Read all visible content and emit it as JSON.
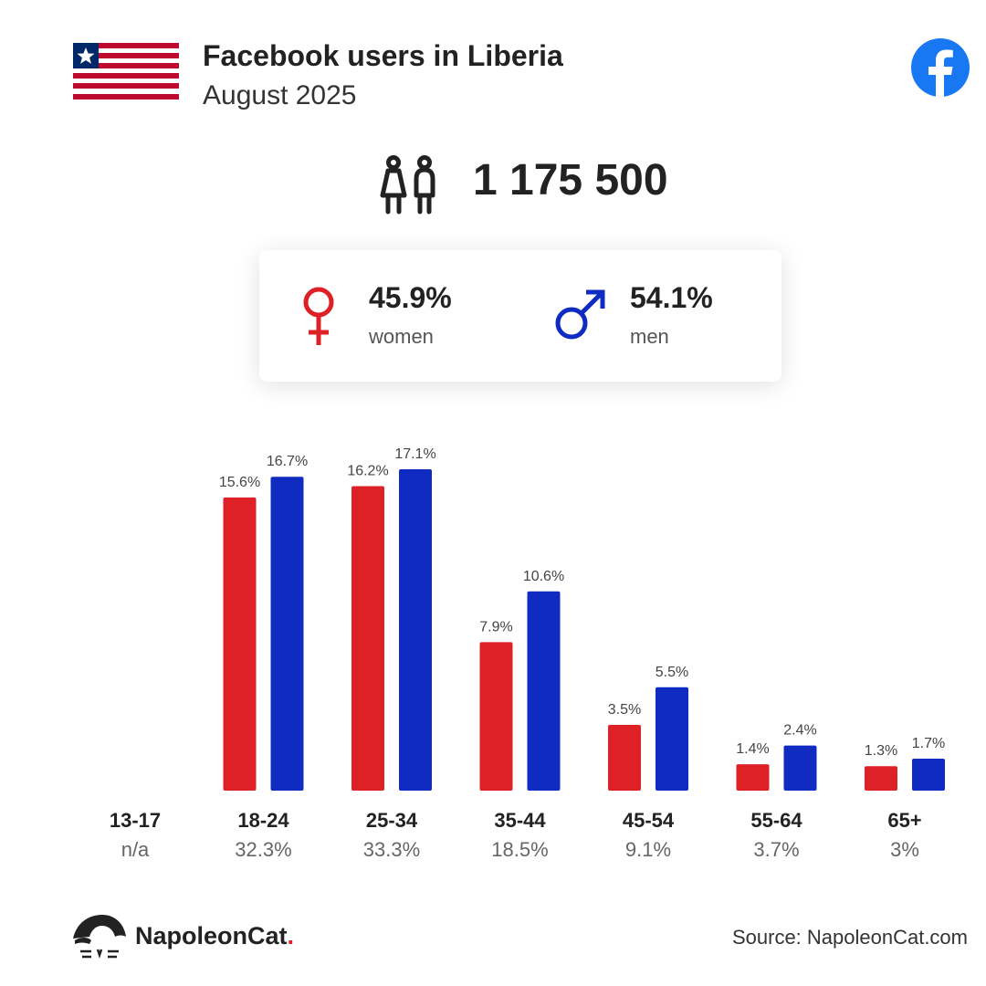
{
  "header": {
    "title": "Facebook users in Liberia",
    "subtitle": "August 2025"
  },
  "total_users": "1 175 500",
  "gender": {
    "women_pct": "45.9%",
    "women_label": "women",
    "men_pct": "54.1%",
    "men_label": "men"
  },
  "colors": {
    "women": "#de2027",
    "men": "#0f2bc2",
    "facebook": "#1877f2"
  },
  "icons": [
    "liberia-flag-icon",
    "facebook-icon",
    "people-icon",
    "female-symbol-icon",
    "male-symbol-icon",
    "napoleoncat-logo-icon"
  ],
  "chart_data": {
    "type": "bar",
    "categories": [
      "13-17",
      "18-24",
      "25-34",
      "35-44",
      "45-54",
      "55-64",
      "65+"
    ],
    "category_totals": [
      "n/a",
      "32.3%",
      "33.3%",
      "18.5%",
      "9.1%",
      "3.7%",
      "3%"
    ],
    "series": [
      {
        "name": "women",
        "values": [
          null,
          15.6,
          16.2,
          7.9,
          3.5,
          1.4,
          1.3
        ],
        "labels": [
          "",
          "15.6%",
          "16.2%",
          "7.9%",
          "3.5%",
          "1.4%",
          "1.3%"
        ]
      },
      {
        "name": "men",
        "values": [
          null,
          16.7,
          17.1,
          10.6,
          5.5,
          2.4,
          1.7
        ],
        "labels": [
          "",
          "16.7%",
          "17.1%",
          "10.6%",
          "5.5%",
          "2.4%",
          "1.7%"
        ]
      }
    ],
    "ylim": [
      0,
      17.1
    ],
    "grid": false,
    "legend": "none"
  },
  "footer": {
    "brand": "NapoleonCat",
    "brand_dot": ".",
    "source": "Source: NapoleonCat.com"
  }
}
